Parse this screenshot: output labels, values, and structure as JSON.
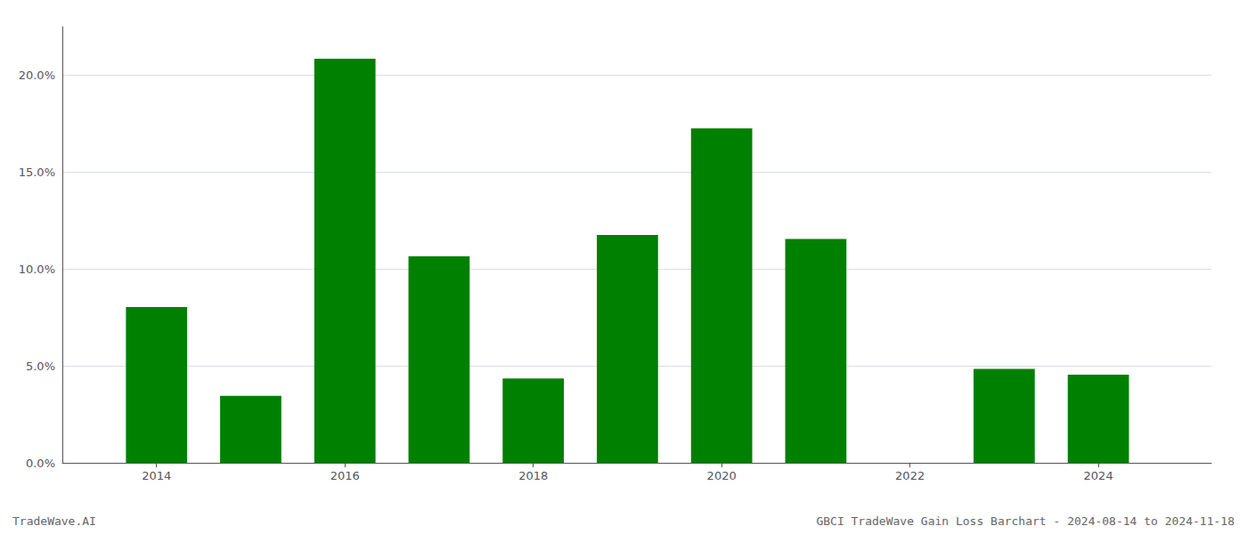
{
  "chart_data": {
    "type": "bar",
    "x": [
      2014,
      2015,
      2016,
      2017,
      2018,
      2019,
      2020,
      2021,
      2022,
      2023,
      2024
    ],
    "values": [
      0.0803,
      0.0345,
      0.2085,
      0.1065,
      0.0435,
      0.1175,
      0.1725,
      0.1155,
      0.0,
      0.0485,
      0.0455
    ],
    "color": "#008000",
    "xlim": [
      2013.0,
      2025.2
    ],
    "xticks": [
      2014,
      2016,
      2018,
      2020,
      2022,
      2024
    ],
    "ylim": [
      0,
      0.225
    ],
    "yticks": [
      {
        "value": 0.0,
        "label": "0.0%"
      },
      {
        "value": 0.05,
        "label": "5.0%"
      },
      {
        "value": 0.1,
        "label": "10.0%"
      },
      {
        "value": 0.15,
        "label": "15.0%"
      },
      {
        "value": 0.2,
        "label": "20.0%"
      }
    ],
    "grid": true,
    "annotations": [
      "TradeWave.AI",
      "GBCI TradeWave Gain Loss Barchart - 2024-08-14 to 2024-11-18"
    ]
  }
}
